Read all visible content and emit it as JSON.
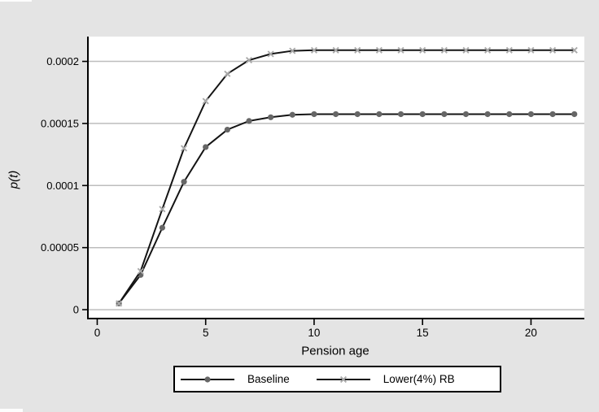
{
  "figure": {
    "background": "#e4e4e4",
    "plot_background": "#ffffff",
    "grid_color": "#bdbdbd",
    "axis_color": "#000000"
  },
  "chart_data": {
    "type": "line",
    "title": "",
    "xlabel": "Pension age",
    "ylabel": "p(t)",
    "x": [
      1,
      2,
      3,
      4,
      5,
      6,
      7,
      8,
      9,
      10,
      11,
      12,
      13,
      14,
      15,
      16,
      17,
      18,
      19,
      20,
      21,
      22
    ],
    "series": [
      {
        "name": "Baseline",
        "marker": "circle",
        "marker_color": "#666666",
        "line_color": "#141414",
        "values": [
          5e-06,
          2.8e-05,
          6.6e-05,
          0.000103,
          0.000131,
          0.000145,
          0.000152,
          0.000155,
          0.000157,
          0.0001575,
          0.0001575,
          0.0001575,
          0.0001575,
          0.0001575,
          0.0001575,
          0.0001575,
          0.0001575,
          0.0001575,
          0.0001575,
          0.0001575,
          0.0001575,
          0.0001575
        ]
      },
      {
        "name": "Lower(4%) RB",
        "marker": "x",
        "marker_color": "#a9a9a9",
        "line_color": "#141414",
        "values": [
          5e-06,
          3.1e-05,
          8.1e-05,
          0.00013,
          0.000168,
          0.00019,
          0.000201,
          0.000206,
          0.0002085,
          0.000209,
          0.000209,
          0.000209,
          0.000209,
          0.000209,
          0.000209,
          0.000209,
          0.000209,
          0.000209,
          0.000209,
          0.000209,
          0.000209,
          0.000209
        ]
      }
    ],
    "x_ticks": [
      {
        "value": 0,
        "label": "0"
      },
      {
        "value": 5,
        "label": "5"
      },
      {
        "value": 10,
        "label": "10"
      },
      {
        "value": 15,
        "label": "15"
      },
      {
        "value": 20,
        "label": "20"
      }
    ],
    "y_ticks": [
      {
        "value": 0,
        "label": "0"
      },
      {
        "value": 5e-05,
        "label": "0.00005"
      },
      {
        "value": 0.0001,
        "label": "0.0001"
      },
      {
        "value": 0.00015,
        "label": "0.00015"
      },
      {
        "value": 0.0002,
        "label": "0.0002"
      }
    ],
    "xlim": [
      -0.43,
      22.46
    ],
    "ylim": [
      -6.5e-06,
      0.00022
    ],
    "grid": "horizontal",
    "legend_position": "bottom"
  }
}
